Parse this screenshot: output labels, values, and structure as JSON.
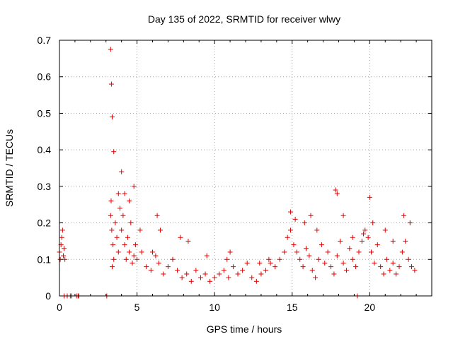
{
  "chart_data": {
    "type": "scatter",
    "title": "Day 135 of 2022, SRMTID for receiver wlwy",
    "xlabel": "GPS time / hours",
    "ylabel": "SRMTID / TECUs",
    "xlim": [
      0,
      24
    ],
    "ylim": [
      0,
      0.7
    ],
    "xticks": [
      0,
      5,
      10,
      15,
      20
    ],
    "yticks": [
      0,
      0.1,
      0.2,
      0.3,
      0.4,
      0.5,
      0.6,
      0.7
    ],
    "xtick_labels": [
      "0",
      "5",
      "10",
      "15",
      "20"
    ],
    "ytick_labels": [
      "0",
      "0.1",
      "0.2",
      "0.3",
      "0.4",
      "0.5",
      "0.6",
      "0.7"
    ],
    "grid": true,
    "marker": "plus",
    "series_color": "#e00000",
    "series": [
      {
        "name": "SRMTID",
        "x": [
          0.0,
          0.05,
          0.1,
          0.15,
          0.2,
          0.25,
          0.3,
          0.35,
          0.3,
          0.5,
          0.7,
          0.8,
          1.1,
          1.2,
          1.25,
          3.05,
          19.2,
          3.3,
          3.33,
          3.37,
          3.4,
          3.45,
          3.5,
          3.6,
          3.7,
          3.8,
          3.9,
          4.0,
          4.1,
          4.2,
          4.3,
          4.4,
          4.5,
          4.6,
          4.7,
          4.8,
          4.9,
          5.0,
          5.3,
          5.6,
          5.9,
          6.2,
          6.4,
          6.7,
          7.0,
          7.3,
          7.6,
          7.9,
          8.2,
          8.5,
          8.8,
          9.1,
          9.4,
          9.7,
          10.0,
          10.3,
          10.6,
          10.9,
          11.2,
          11.5,
          11.8,
          12.1,
          12.4,
          12.7,
          13.0,
          13.3,
          13.6,
          13.9,
          14.2,
          14.5,
          14.7,
          14.9,
          15.1,
          15.3,
          15.5,
          15.7,
          15.9,
          16.1,
          16.3,
          16.5,
          16.7,
          16.9,
          17.1,
          17.3,
          17.5,
          17.7,
          17.9,
          18.1,
          18.3,
          18.5,
          18.7,
          18.9,
          19.1,
          19.3,
          19.5,
          19.7,
          19.9,
          20.1,
          20.3,
          20.5,
          20.7,
          20.9,
          21.1,
          21.3,
          21.5,
          21.7,
          21.9,
          22.1,
          22.3,
          22.5,
          22.7,
          22.9,
          3.3,
          3.35,
          3.4,
          4.0,
          4.2,
          4.8,
          6.3,
          6.5,
          7.8,
          8.3,
          11.0,
          14.9,
          15.2,
          16.2,
          17.8,
          17.9,
          18.3,
          20.0,
          20.2,
          21.0,
          22.2,
          22.6,
          3.5,
          3.8,
          4.5,
          5.2,
          6.0,
          9.5,
          10.8,
          12.9,
          13.5,
          15.8,
          16.6,
          18.9,
          19.6,
          21.5
        ],
        "y": [
          0.12,
          0.1,
          0.14,
          0.16,
          0.18,
          0.11,
          0.13,
          0.1,
          0.0,
          0.0,
          0.0,
          0.0,
          0.0,
          0.0,
          0.0,
          0.0,
          0.0,
          0.22,
          0.26,
          0.18,
          0.08,
          0.14,
          0.1,
          0.2,
          0.16,
          0.12,
          0.24,
          0.18,
          0.22,
          0.14,
          0.1,
          0.16,
          0.12,
          0.2,
          0.09,
          0.11,
          0.14,
          0.1,
          0.12,
          0.08,
          0.07,
          0.11,
          0.09,
          0.06,
          0.08,
          0.1,
          0.07,
          0.05,
          0.06,
          0.04,
          0.07,
          0.05,
          0.06,
          0.04,
          0.05,
          0.06,
          0.07,
          0.05,
          0.08,
          0.06,
          0.07,
          0.09,
          0.05,
          0.04,
          0.06,
          0.07,
          0.09,
          0.08,
          0.1,
          0.12,
          0.16,
          0.18,
          0.14,
          0.12,
          0.1,
          0.08,
          0.13,
          0.11,
          0.07,
          0.05,
          0.1,
          0.14,
          0.09,
          0.12,
          0.08,
          0.06,
          0.11,
          0.15,
          0.09,
          0.07,
          0.13,
          0.1,
          0.08,
          0.12,
          0.15,
          0.18,
          0.16,
          0.12,
          0.09,
          0.14,
          0.08,
          0.06,
          0.1,
          0.07,
          0.09,
          0.06,
          0.08,
          0.12,
          0.15,
          0.1,
          0.08,
          0.07,
          0.675,
          0.58,
          0.49,
          0.34,
          0.28,
          0.3,
          0.22,
          0.18,
          0.16,
          0.15,
          0.12,
          0.23,
          0.21,
          0.22,
          0.29,
          0.28,
          0.22,
          0.27,
          0.2,
          0.18,
          0.22,
          0.2,
          0.395,
          0.28,
          0.26,
          0.18,
          0.12,
          0.11,
          0.1,
          0.09,
          0.1,
          0.2,
          0.18,
          0.16,
          0.17,
          0.15
        ]
      }
    ]
  }
}
